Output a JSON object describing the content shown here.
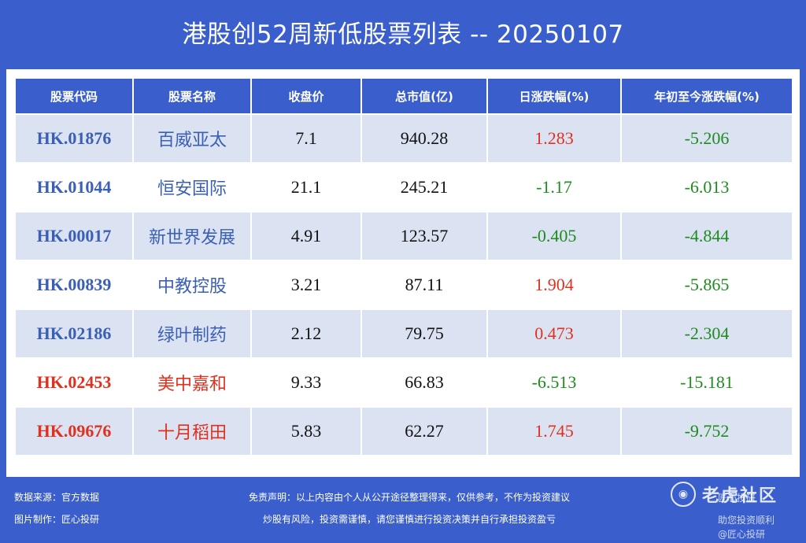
{
  "title": "港股创52周新低股票列表 -- 20250107",
  "table": {
    "headers": [
      "股票代码",
      "股票名称",
      "收盘价",
      "总市值(亿)",
      "日涨跌幅(%)",
      "年初至今涨跌幅(%)"
    ],
    "rows": [
      {
        "code": "HK.01876",
        "name": "百威亚太",
        "price": "7.1",
        "cap": "940.28",
        "day": "1.283",
        "ytd": "-5.206"
      },
      {
        "code": "HK.01044",
        "name": "恒安国际",
        "price": "21.1",
        "cap": "245.21",
        "day": "-1.17",
        "ytd": "-6.013"
      },
      {
        "code": "HK.00017",
        "name": "新世界发展",
        "price": "4.91",
        "cap": "123.57",
        "day": "-0.405",
        "ytd": "-4.844"
      },
      {
        "code": "HK.00839",
        "name": "中教控股",
        "price": "3.21",
        "cap": "87.11",
        "day": "1.904",
        "ytd": "-5.865"
      },
      {
        "code": "HK.02186",
        "name": "绿叶制药",
        "price": "2.12",
        "cap": "79.75",
        "day": "0.473",
        "ytd": "-2.304"
      },
      {
        "code": "HK.02453",
        "name": "美中嘉和",
        "price": "9.33",
        "cap": "66.83",
        "day": "-6.513",
        "ytd": "-15.181"
      },
      {
        "code": "HK.09676",
        "name": "十月稻田",
        "price": "5.83",
        "cap": "62.27",
        "day": "1.745",
        "ytd": "-9.752"
      }
    ]
  },
  "colors": {
    "background": "#3a5fcd",
    "code_blue": "#3a5fb5",
    "code_red": "#e0301e",
    "positive": "#e0301e",
    "negative": "#1f8a1f",
    "row_stripe": "#dbe3f3"
  },
  "footer": {
    "source": "数据来源：官方数据",
    "maker": "图片制作：匠心投研",
    "disclaimer1": "免责声明：以上内容由个人从公开途径整理得来，仅供参考，不作为投资建议",
    "disclaimer2": "炒股有风险，投资需谨慎，请您谨慎进行投资决策并自行承担投资盈亏",
    "watermark": "老虎社区",
    "watermark_sub1": "匠心投研",
    "watermark_sub2": "助您投资顺利",
    "watermark_sub3": "@匠心投研"
  }
}
